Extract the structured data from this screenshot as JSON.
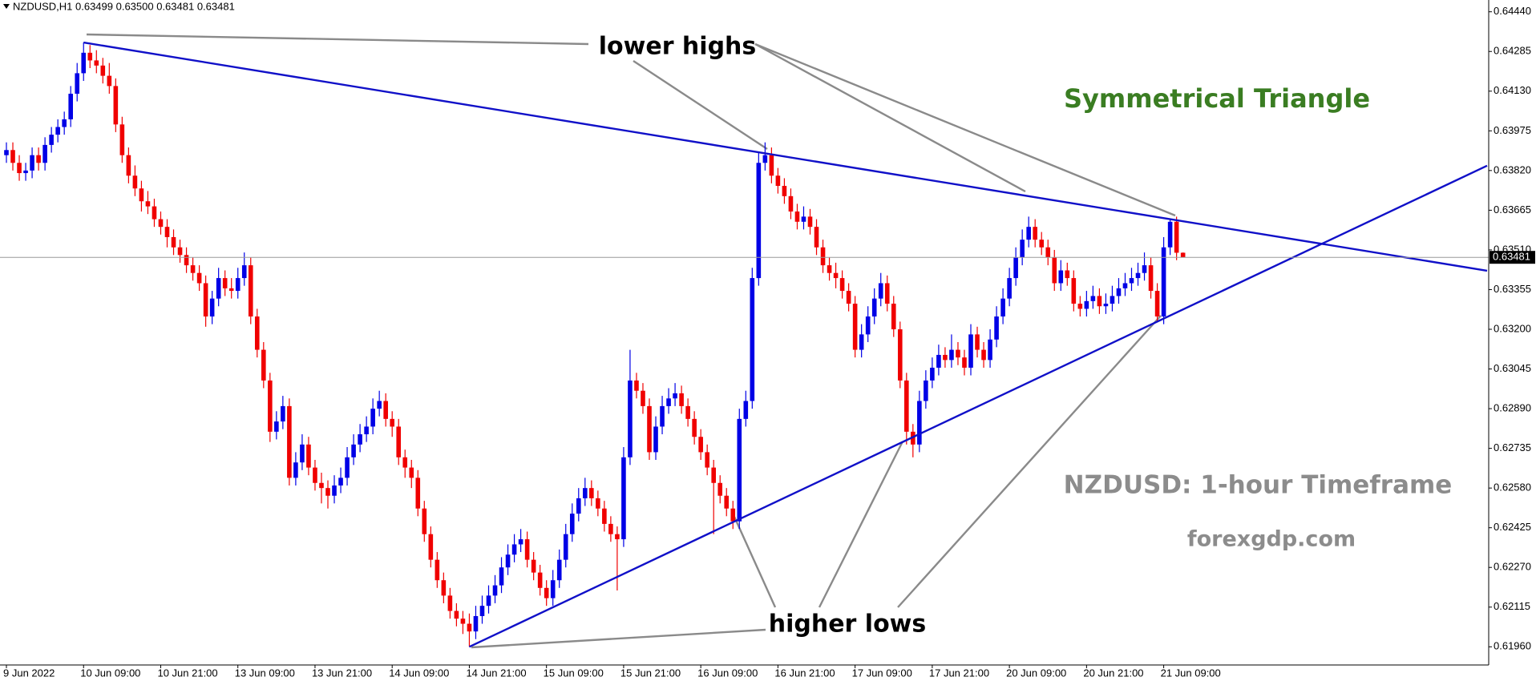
{
  "chart_data": {
    "type": "candlestick",
    "header": "NZDUSD,H1  0.63499 0.63500 0.63481 0.63481",
    "up_color": "#0000e6",
    "down_color": "#f00000",
    "ylim": [
      0.61889,
      0.64486
    ],
    "yticks": [
      {
        "value": 0.6444,
        "label": "0.64440"
      },
      0.64285,
      {
        "value": 0.6413,
        "label": "0.64130"
      },
      0.63975,
      {
        "value": 0.6382,
        "label": "0.63820"
      },
      0.63665,
      {
        "value": 0.6351,
        "label": "0.63510"
      },
      0.63355,
      {
        "value": 0.632,
        "label": "0.63200"
      },
      0.63045,
      {
        "value": 0.6289,
        "label": "0.62890"
      },
      0.62735,
      {
        "value": 0.6258,
        "label": "0.62580"
      },
      0.62425,
      {
        "value": 0.6227,
        "label": "0.62270"
      },
      0.62115,
      {
        "value": 0.6196,
        "label": "0.61960"
      }
    ],
    "xticks": [
      {
        "value": 0,
        "label": "9 Jun 2022"
      },
      {
        "value": 12,
        "label": "10 Jun 09:00"
      },
      {
        "value": 24,
        "label": "10 Jun 21:00"
      },
      {
        "value": 36,
        "label": "13 Jun 09:00"
      },
      {
        "value": 48,
        "label": "13 Jun 21:00"
      },
      {
        "value": 60,
        "label": "14 Jun 09:00"
      },
      {
        "value": 72,
        "label": "14 Jun 21:00"
      },
      {
        "value": 84,
        "label": "15 Jun 09:00"
      },
      {
        "value": 96,
        "label": "15 Jun 21:00"
      },
      {
        "value": 108,
        "label": "16 Jun 09:00"
      },
      {
        "value": 120,
        "label": "16 Jun 21:00"
      },
      {
        "value": 132,
        "label": "17 Jun 09:00"
      },
      {
        "value": 144,
        "label": "17 Jun 21:00"
      },
      {
        "value": 156,
        "label": "20 Jun 09:00"
      },
      {
        "value": 168,
        "label": "20 Jun 21:00"
      },
      {
        "value": 180,
        "label": "21 Jun 09:00"
      }
    ],
    "current_price": 0.63481,
    "trendline_color": "#1010c8",
    "trendlines": [
      {
        "from": [
          12,
          0.6432
        ],
        "to": [
          181,
          0.6363
        ]
      },
      {
        "from": [
          72,
          0.6196
        ],
        "to": [
          179,
          0.6323
        ]
      }
    ],
    "annotations": [
      "lower highs",
      "higher lows",
      "Symmetrical Triangle",
      "NZDUSD: 1-hour Timeframe",
      "forexgdp.com"
    ],
    "candles": [
      [
        0.6388,
        0.6393,
        0.6385,
        0.639
      ],
      [
        0.639,
        0.6393,
        0.6382,
        0.6385
      ],
      [
        0.6385,
        0.6388,
        0.6378,
        0.6381
      ],
      [
        0.6381,
        0.6385,
        0.6378,
        0.6382
      ],
      [
        0.6382,
        0.6391,
        0.6379,
        0.6388
      ],
      [
        0.6388,
        0.6391,
        0.6382,
        0.6385
      ],
      [
        0.6385,
        0.6395,
        0.6382,
        0.6392
      ],
      [
        0.6392,
        0.6399,
        0.6389,
        0.6396
      ],
      [
        0.6396,
        0.6402,
        0.6393,
        0.6399
      ],
      [
        0.6399,
        0.6405,
        0.6396,
        0.6402
      ],
      [
        0.6402,
        0.6415,
        0.6399,
        0.6412
      ],
      [
        0.6412,
        0.6424,
        0.6409,
        0.642
      ],
      [
        0.642,
        0.6432,
        0.6417,
        0.6428
      ],
      [
        0.6428,
        0.6431,
        0.6422,
        0.6425
      ],
      [
        0.6425,
        0.6429,
        0.642,
        0.6423
      ],
      [
        0.6423,
        0.6426,
        0.6416,
        0.6419
      ],
      [
        0.6419,
        0.6424,
        0.6412,
        0.6415
      ],
      [
        0.6415,
        0.6418,
        0.6397,
        0.64
      ],
      [
        0.64,
        0.6403,
        0.6385,
        0.6388
      ],
      [
        0.6388,
        0.6391,
        0.6377,
        0.638
      ],
      [
        0.638,
        0.6384,
        0.6372,
        0.6375
      ],
      [
        0.6375,
        0.6378,
        0.6366,
        0.637
      ],
      [
        0.637,
        0.6374,
        0.6365,
        0.6368
      ],
      [
        0.6368,
        0.6371,
        0.636,
        0.6363
      ],
      [
        0.6363,
        0.6366,
        0.6357,
        0.636
      ],
      [
        0.636,
        0.6363,
        0.6352,
        0.6356
      ],
      [
        0.6356,
        0.6359,
        0.6349,
        0.6352
      ],
      [
        0.6352,
        0.6355,
        0.6346,
        0.6349
      ],
      [
        0.6349,
        0.6352,
        0.6342,
        0.6345
      ],
      [
        0.6345,
        0.6348,
        0.6339,
        0.6342
      ],
      [
        0.6342,
        0.6345,
        0.6335,
        0.6338
      ],
      [
        0.6338,
        0.6341,
        0.6321,
        0.6325
      ],
      [
        0.6325,
        0.6335,
        0.6322,
        0.6332
      ],
      [
        0.6332,
        0.6344,
        0.6329,
        0.634
      ],
      [
        0.634,
        0.6343,
        0.6333,
        0.6336
      ],
      [
        0.6336,
        0.634,
        0.6332,
        0.6335
      ],
      [
        0.6335,
        0.6344,
        0.6332,
        0.634
      ],
      [
        0.634,
        0.635,
        0.6337,
        0.6345
      ],
      [
        0.6345,
        0.6348,
        0.6322,
        0.6325
      ],
      [
        0.6325,
        0.6328,
        0.6309,
        0.6312
      ],
      [
        0.6312,
        0.6315,
        0.6297,
        0.63
      ],
      [
        0.63,
        0.6303,
        0.6276,
        0.628
      ],
      [
        0.628,
        0.6288,
        0.6277,
        0.6284
      ],
      [
        0.6284,
        0.6294,
        0.6281,
        0.629
      ],
      [
        0.629,
        0.6293,
        0.6259,
        0.6262
      ],
      [
        0.6262,
        0.6272,
        0.6259,
        0.6268
      ],
      [
        0.6268,
        0.6279,
        0.6265,
        0.6275
      ],
      [
        0.6275,
        0.6278,
        0.6263,
        0.6266
      ],
      [
        0.6266,
        0.6269,
        0.6257,
        0.626
      ],
      [
        0.626,
        0.6264,
        0.6252,
        0.6258
      ],
      [
        0.6258,
        0.6261,
        0.625,
        0.6255
      ],
      [
        0.6255,
        0.6263,
        0.6252,
        0.6259
      ],
      [
        0.6259,
        0.6266,
        0.6256,
        0.6262
      ],
      [
        0.6262,
        0.6274,
        0.6259,
        0.627
      ],
      [
        0.627,
        0.6279,
        0.6267,
        0.6275
      ],
      [
        0.6275,
        0.6283,
        0.6272,
        0.6279
      ],
      [
        0.6279,
        0.6286,
        0.6276,
        0.6282
      ],
      [
        0.6282,
        0.6293,
        0.6279,
        0.6289
      ],
      [
        0.6289,
        0.6296,
        0.6286,
        0.6292
      ],
      [
        0.6292,
        0.6295,
        0.6282,
        0.6285
      ],
      [
        0.6285,
        0.6288,
        0.6278,
        0.6282
      ],
      [
        0.6282,
        0.6285,
        0.6267,
        0.627
      ],
      [
        0.627,
        0.6273,
        0.6262,
        0.6266
      ],
      [
        0.6266,
        0.6269,
        0.6258,
        0.6262
      ],
      [
        0.6262,
        0.6265,
        0.6247,
        0.625
      ],
      [
        0.625,
        0.6253,
        0.6237,
        0.624
      ],
      [
        0.624,
        0.6243,
        0.6227,
        0.623
      ],
      [
        0.623,
        0.6233,
        0.6219,
        0.6222
      ],
      [
        0.6222,
        0.6225,
        0.6213,
        0.6216
      ],
      [
        0.6216,
        0.6219,
        0.6207,
        0.621
      ],
      [
        0.621,
        0.6213,
        0.6204,
        0.6207
      ],
      [
        0.6207,
        0.621,
        0.6201,
        0.6205
      ],
      [
        0.6205,
        0.6209,
        0.6196,
        0.6202
      ],
      [
        0.6202,
        0.6212,
        0.6199,
        0.6208
      ],
      [
        0.6208,
        0.6216,
        0.6205,
        0.6212
      ],
      [
        0.6212,
        0.622,
        0.6209,
        0.6216
      ],
      [
        0.6216,
        0.6224,
        0.6213,
        0.622
      ],
      [
        0.622,
        0.6231,
        0.6217,
        0.6227
      ],
      [
        0.6227,
        0.6236,
        0.6224,
        0.6232
      ],
      [
        0.6232,
        0.624,
        0.6229,
        0.6236
      ],
      [
        0.6236,
        0.6242,
        0.6233,
        0.6238
      ],
      [
        0.6238,
        0.6241,
        0.6227,
        0.623
      ],
      [
        0.623,
        0.6233,
        0.6222,
        0.6225
      ],
      [
        0.6225,
        0.6228,
        0.6216,
        0.6219
      ],
      [
        0.6219,
        0.6222,
        0.6212,
        0.6215
      ],
      [
        0.6215,
        0.6226,
        0.6212,
        0.6222
      ],
      [
        0.6222,
        0.6234,
        0.6219,
        0.623
      ],
      [
        0.623,
        0.6244,
        0.6227,
        0.624
      ],
      [
        0.624,
        0.6252,
        0.6237,
        0.6248
      ],
      [
        0.6248,
        0.6258,
        0.6245,
        0.6254
      ],
      [
        0.6254,
        0.6262,
        0.6251,
        0.6258
      ],
      [
        0.6258,
        0.6261,
        0.6251,
        0.6254
      ],
      [
        0.6254,
        0.6257,
        0.6247,
        0.625
      ],
      [
        0.625,
        0.6253,
        0.6241,
        0.6244
      ],
      [
        0.6244,
        0.6247,
        0.6237,
        0.624
      ],
      [
        0.624,
        0.6243,
        0.6218,
        0.6238
      ],
      [
        0.6238,
        0.6274,
        0.6235,
        0.627
      ],
      [
        0.627,
        0.6312,
        0.6267,
        0.63
      ],
      [
        0.63,
        0.6303,
        0.6293,
        0.6296
      ],
      [
        0.6296,
        0.6299,
        0.6287,
        0.629
      ],
      [
        0.629,
        0.6293,
        0.6269,
        0.6272
      ],
      [
        0.6272,
        0.6286,
        0.6269,
        0.6282
      ],
      [
        0.6282,
        0.6294,
        0.6279,
        0.629
      ],
      [
        0.629,
        0.6297,
        0.6287,
        0.6293
      ],
      [
        0.6293,
        0.6299,
        0.629,
        0.6295
      ],
      [
        0.6295,
        0.6298,
        0.6287,
        0.629
      ],
      [
        0.629,
        0.6293,
        0.6282,
        0.6285
      ],
      [
        0.6285,
        0.6288,
        0.6275,
        0.6278
      ],
      [
        0.6278,
        0.6281,
        0.6269,
        0.6272
      ],
      [
        0.6272,
        0.6275,
        0.6263,
        0.6266
      ],
      [
        0.6266,
        0.6269,
        0.624,
        0.626
      ],
      [
        0.626,
        0.6263,
        0.6252,
        0.6255
      ],
      [
        0.6255,
        0.6258,
        0.6247,
        0.625
      ],
      [
        0.625,
        0.6253,
        0.6242,
        0.6245
      ],
      [
        0.6245,
        0.6289,
        0.6242,
        0.6285
      ],
      [
        0.6285,
        0.6296,
        0.6282,
        0.6292
      ],
      [
        0.6292,
        0.6344,
        0.6289,
        0.634
      ],
      [
        0.634,
        0.6389,
        0.6337,
        0.6385
      ],
      [
        0.6385,
        0.6393,
        0.6382,
        0.6388
      ],
      [
        0.6388,
        0.6391,
        0.6377,
        0.638
      ],
      [
        0.638,
        0.6383,
        0.6373,
        0.6376
      ],
      [
        0.6376,
        0.6379,
        0.6369,
        0.6372
      ],
      [
        0.6372,
        0.6375,
        0.6363,
        0.6366
      ],
      [
        0.6366,
        0.6369,
        0.6359,
        0.6362
      ],
      [
        0.6362,
        0.6368,
        0.6359,
        0.6364
      ],
      [
        0.6364,
        0.6367,
        0.6357,
        0.636
      ],
      [
        0.636,
        0.6363,
        0.6349,
        0.6352
      ],
      [
        0.6352,
        0.6355,
        0.6342,
        0.6345
      ],
      [
        0.6345,
        0.6348,
        0.6339,
        0.6342
      ],
      [
        0.6342,
        0.6346,
        0.6336,
        0.634
      ],
      [
        0.634,
        0.6343,
        0.6332,
        0.6335
      ],
      [
        0.6335,
        0.6338,
        0.6327,
        0.633
      ],
      [
        0.633,
        0.6333,
        0.6309,
        0.6312
      ],
      [
        0.6312,
        0.6322,
        0.6309,
        0.6318
      ],
      [
        0.6318,
        0.6329,
        0.6315,
        0.6325
      ],
      [
        0.6325,
        0.6336,
        0.6322,
        0.6332
      ],
      [
        0.6332,
        0.6342,
        0.6329,
        0.6338
      ],
      [
        0.6338,
        0.6341,
        0.6327,
        0.633
      ],
      [
        0.633,
        0.6333,
        0.6317,
        0.632
      ],
      [
        0.632,
        0.6323,
        0.6297,
        0.63
      ],
      [
        0.63,
        0.6303,
        0.6275,
        0.628
      ],
      [
        0.628,
        0.6283,
        0.627,
        0.6275
      ],
      [
        0.6275,
        0.6296,
        0.6272,
        0.6292
      ],
      [
        0.6292,
        0.6304,
        0.6289,
        0.63
      ],
      [
        0.63,
        0.6309,
        0.6297,
        0.6305
      ],
      [
        0.6305,
        0.6314,
        0.6302,
        0.631
      ],
      [
        0.631,
        0.6313,
        0.6305,
        0.6308
      ],
      [
        0.6308,
        0.6318,
        0.6305,
        0.6312
      ],
      [
        0.6312,
        0.6315,
        0.6306,
        0.6309
      ],
      [
        0.6309,
        0.6312,
        0.6302,
        0.6305
      ],
      [
        0.6305,
        0.6322,
        0.6302,
        0.6318
      ],
      [
        0.6318,
        0.6321,
        0.6309,
        0.6312
      ],
      [
        0.6312,
        0.6315,
        0.6305,
        0.6308
      ],
      [
        0.6308,
        0.632,
        0.6305,
        0.6316
      ],
      [
        0.6316,
        0.6329,
        0.6313,
        0.6325
      ],
      [
        0.6325,
        0.6336,
        0.6322,
        0.6332
      ],
      [
        0.6332,
        0.6344,
        0.6329,
        0.634
      ],
      [
        0.634,
        0.6352,
        0.6337,
        0.6348
      ],
      [
        0.6348,
        0.6359,
        0.6345,
        0.6355
      ],
      [
        0.6355,
        0.6364,
        0.6352,
        0.636
      ],
      [
        0.636,
        0.6363,
        0.6352,
        0.6355
      ],
      [
        0.6355,
        0.6358,
        0.6349,
        0.6352
      ],
      [
        0.6352,
        0.6355,
        0.6345,
        0.6348
      ],
      [
        0.6348,
        0.6351,
        0.6335,
        0.6338
      ],
      [
        0.6338,
        0.6347,
        0.6335,
        0.6343
      ],
      [
        0.6343,
        0.6346,
        0.6337,
        0.634
      ],
      [
        0.634,
        0.6343,
        0.6327,
        0.633
      ],
      [
        0.633,
        0.6333,
        0.6325,
        0.6328
      ],
      [
        0.6328,
        0.6335,
        0.6325,
        0.6331
      ],
      [
        0.6331,
        0.6337,
        0.6328,
        0.6333
      ],
      [
        0.6333,
        0.6336,
        0.6326,
        0.6329
      ],
      [
        0.6329,
        0.6334,
        0.6326,
        0.633
      ],
      [
        0.633,
        0.6337,
        0.6327,
        0.6333
      ],
      [
        0.6333,
        0.634,
        0.633,
        0.6336
      ],
      [
        0.6336,
        0.6342,
        0.6333,
        0.6338
      ],
      [
        0.6338,
        0.6344,
        0.6335,
        0.634
      ],
      [
        0.634,
        0.6346,
        0.6337,
        0.6342
      ],
      [
        0.6342,
        0.635,
        0.6339,
        0.6345
      ],
      [
        0.6345,
        0.6348,
        0.6332,
        0.6335
      ],
      [
        0.6335,
        0.6338,
        0.6323,
        0.6325
      ],
      [
        0.6325,
        0.6356,
        0.6322,
        0.6352
      ],
      [
        0.6352,
        0.6363,
        0.6349,
        0.6362
      ],
      [
        0.6362,
        0.6364,
        0.6347,
        0.63499
      ],
      [
        0.63499,
        0.635,
        0.63481,
        0.63481
      ]
    ]
  }
}
